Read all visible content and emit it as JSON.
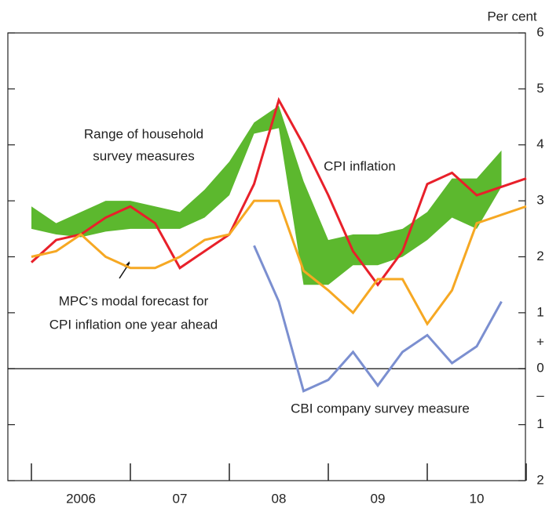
{
  "chart_data": {
    "type": "line",
    "y_unit": "Per cent",
    "categories": [
      null,
      null,
      "2006",
      null,
      null,
      null,
      "07",
      null,
      null,
      null,
      "08",
      null,
      null,
      null,
      "09",
      null,
      null,
      null,
      "10",
      null,
      null
    ],
    "band": {
      "name": "Range of household survey measures",
      "color": "#5cb82e",
      "low": [
        2.5,
        2.4,
        2.35,
        2.45,
        2.5,
        2.5,
        2.5,
        2.7,
        3.1,
        4.2,
        4.3,
        1.5,
        1.5,
        1.85,
        1.85,
        2.0,
        2.3,
        2.7,
        2.5,
        3.25,
        null
      ],
      "high": [
        2.9,
        2.6,
        2.8,
        3.0,
        3.0,
        2.9,
        2.8,
        3.2,
        3.7,
        4.4,
        4.7,
        3.35,
        2.3,
        2.4,
        2.4,
        2.5,
        2.8,
        3.4,
        3.4,
        3.9,
        null
      ]
    },
    "series": [
      {
        "name": "CPI inflation",
        "color": "#e8202a",
        "values": [
          1.9,
          2.3,
          2.4,
          2.7,
          2.9,
          2.6,
          1.8,
          2.1,
          2.4,
          3.3,
          4.8,
          4.0,
          3.1,
          2.1,
          1.5,
          2.1,
          3.3,
          3.5,
          3.1,
          3.25,
          3.4
        ]
      },
      {
        "name": "MPC's modal forecast for CPI inflation one year ahead",
        "color": "#f6a823",
        "values": [
          2.0,
          2.1,
          2.4,
          2.0,
          1.8,
          1.8,
          2.0,
          2.3,
          2.4,
          3.0,
          3.0,
          1.75,
          1.4,
          1.0,
          1.6,
          1.6,
          0.8,
          1.4,
          2.6,
          2.75,
          2.9
        ]
      },
      {
        "name": "CBI company survey measure",
        "color": "#7b8fd0",
        "values": [
          null,
          null,
          null,
          null,
          null,
          null,
          null,
          null,
          null,
          2.2,
          1.2,
          -0.4,
          -0.2,
          0.3,
          -0.3,
          0.3,
          0.6,
          0.1,
          0.4,
          1.2,
          null
        ]
      }
    ],
    "ylim": [
      -2,
      6
    ],
    "yticks": [
      6,
      5,
      4,
      3,
      2,
      1,
      0,
      {
        "value": -1,
        "label": "1"
      },
      {
        "value": -2,
        "label": "2"
      }
    ],
    "zero_line": true,
    "annotations": [
      "Range of household",
      "survey measures",
      "CPI inflation",
      "MPC’s modal forecast for",
      "CPI inflation one year ahead",
      "CBI company survey measure"
    ],
    "sign_labels": [
      "+",
      "–"
    ]
  }
}
